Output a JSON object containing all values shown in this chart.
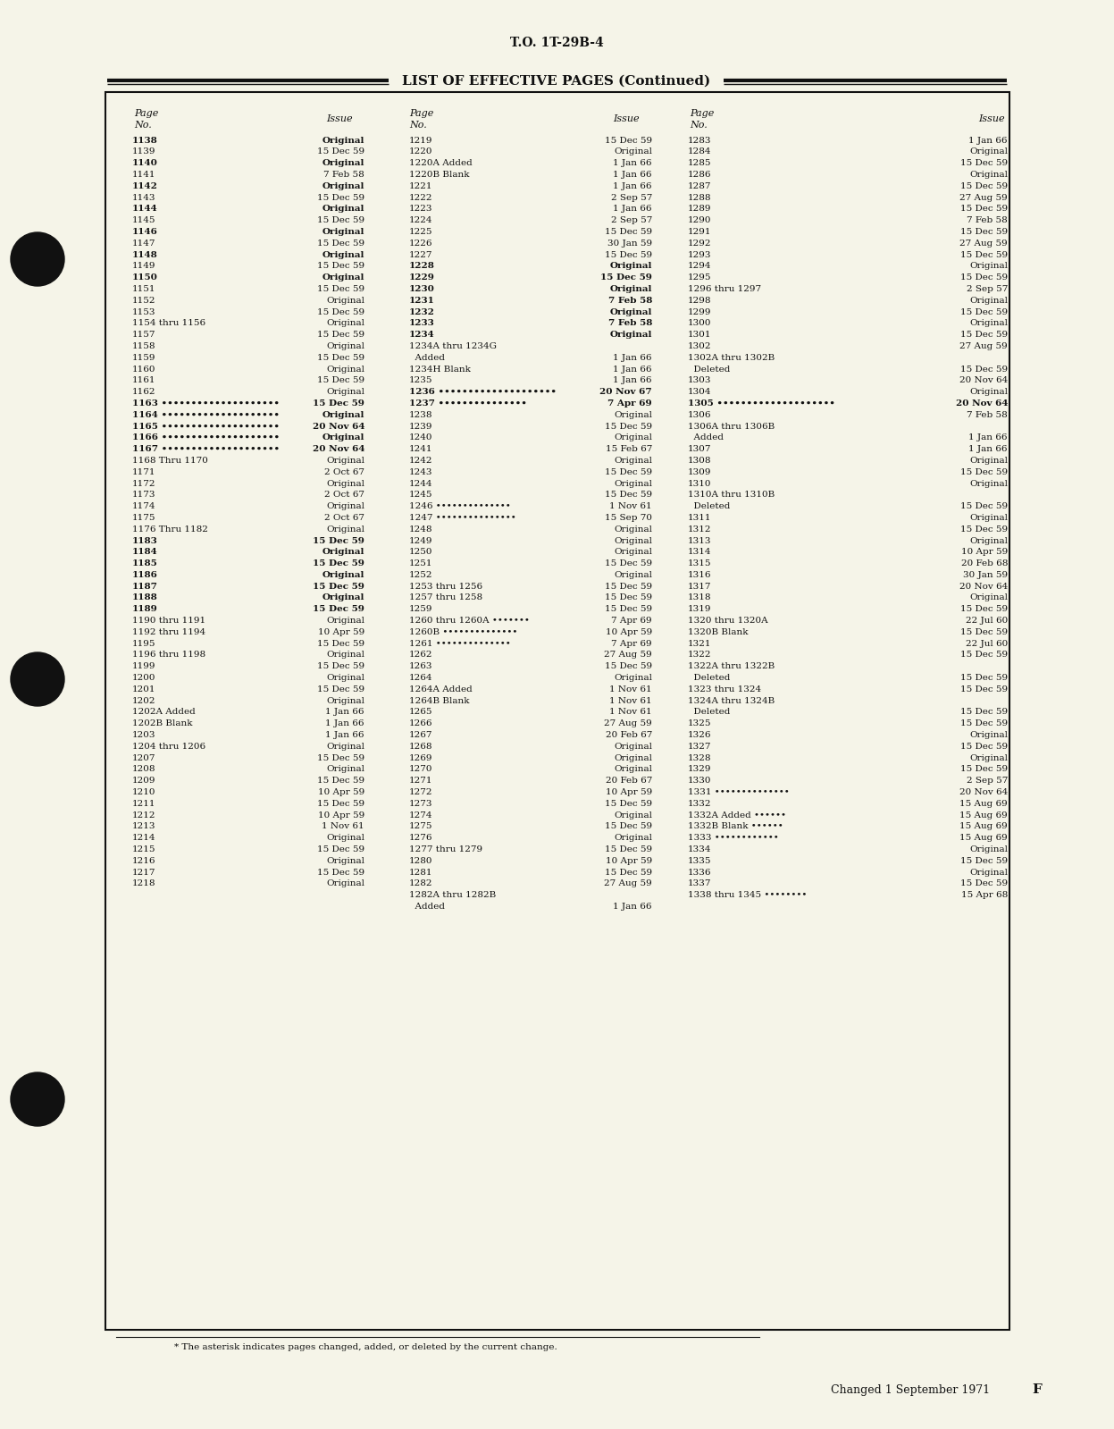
{
  "bg_color": "#f5f4e8",
  "page_color": "#f5f4e8",
  "top_label": "T.O. 1T-29B-4",
  "title": "LIST OF EFFECTIVE PAGES (Continued)",
  "bottom_text": "Changed 1 September 1971",
  "bottom_letter": "F",
  "footnote": "* The asterisk indicates pages changed, added, or deleted by the current change.",
  "col1": [
    [
      "1138",
      "Original",
      true
    ],
    [
      "1139",
      "15 Dec 59",
      false
    ],
    [
      "1140",
      "Original",
      true
    ],
    [
      "1141",
      "7 Feb 58",
      false
    ],
    [
      "1142",
      "Original",
      true
    ],
    [
      "1143",
      "15 Dec 59",
      false
    ],
    [
      "1144",
      "Original",
      true
    ],
    [
      "1145",
      "15 Dec 59",
      false
    ],
    [
      "1146",
      "Original",
      true
    ],
    [
      "1147",
      "15 Dec 59",
      false
    ],
    [
      "1148",
      "Original",
      true
    ],
    [
      "1149",
      "15 Dec 59",
      false
    ],
    [
      "1150",
      "Original",
      true
    ],
    [
      "1151",
      "15 Dec 59",
      false
    ],
    [
      "1152",
      "Original",
      false
    ],
    [
      "1153",
      "15 Dec 59",
      false
    ],
    [
      "1154 thru 1156",
      "Original",
      false
    ],
    [
      "1157",
      "15 Dec 59",
      false
    ],
    [
      "1158",
      "Original",
      false
    ],
    [
      "1159",
      "15 Dec 59",
      false
    ],
    [
      "1160",
      "Original",
      false
    ],
    [
      "1161",
      "15 Dec 59",
      false
    ],
    [
      "1162",
      "Original",
      false
    ],
    [
      "1163 ••••••••••••••••••••",
      "15 Dec 59",
      true
    ],
    [
      "1164 ••••••••••••••••••••",
      "Original",
      true
    ],
    [
      "1165 ••••••••••••••••••••",
      "20 Nov 64",
      true
    ],
    [
      "1166 ••••••••••••••••••••",
      "Original",
      true
    ],
    [
      "1167 ••••••••••••••••••••",
      "20 Nov 64",
      true
    ],
    [
      "1168 Thru 1170",
      "Original",
      false
    ],
    [
      "1171",
      "2 Oct 67",
      false
    ],
    [
      "1172",
      "Original",
      false
    ],
    [
      "1173",
      "2 Oct 67",
      false
    ],
    [
      "1174",
      "Original",
      false
    ],
    [
      "1175",
      "2 Oct 67",
      false
    ],
    [
      "1176 Thru 1182",
      "Original",
      false
    ],
    [
      "1183",
      "15 Dec 59",
      true
    ],
    [
      "1184",
      "Original",
      true
    ],
    [
      "1185",
      "15 Dec 59",
      true
    ],
    [
      "1186",
      "Original",
      true
    ],
    [
      "1187",
      "15 Dec 59",
      true
    ],
    [
      "1188",
      "Original",
      true
    ],
    [
      "1189",
      "15 Dec 59",
      true
    ],
    [
      "1190 thru 1191",
      "Original",
      false
    ],
    [
      "1192 thru 1194",
      "10 Apr 59",
      false
    ],
    [
      "1195",
      "15 Dec 59",
      false
    ],
    [
      "1196 thru 1198",
      "Original",
      false
    ],
    [
      "1199",
      "15 Dec 59",
      false
    ],
    [
      "1200",
      "Original",
      false
    ],
    [
      "1201",
      "15 Dec 59",
      false
    ],
    [
      "1202",
      "Original",
      false
    ],
    [
      "1202A Added",
      "1 Jan 66",
      false
    ],
    [
      "1202B Blank",
      "1 Jan 66",
      false
    ],
    [
      "1203",
      "1 Jan 66",
      false
    ],
    [
      "1204 thru 1206",
      "Original",
      false
    ],
    [
      "1207",
      "15 Dec 59",
      false
    ],
    [
      "1208",
      "Original",
      false
    ],
    [
      "1209",
      "15 Dec 59",
      false
    ],
    [
      "1210",
      "10 Apr 59",
      false
    ],
    [
      "1211",
      "15 Dec 59",
      false
    ],
    [
      "1212",
      "10 Apr 59",
      false
    ],
    [
      "1213",
      "1 Nov 61",
      false
    ],
    [
      "1214",
      "Original",
      false
    ],
    [
      "1215",
      "15 Dec 59",
      false
    ],
    [
      "1216",
      "Original",
      false
    ],
    [
      "1217",
      "15 Dec 59",
      false
    ],
    [
      "1218",
      "Original",
      false
    ]
  ],
  "col2": [
    [
      "1219",
      "15 Dec 59",
      false
    ],
    [
      "1220",
      "Original",
      false
    ],
    [
      "1220A Added",
      "1 Jan 66",
      false
    ],
    [
      "1220B Blank",
      "1 Jan 66",
      false
    ],
    [
      "1221",
      "1 Jan 66",
      false
    ],
    [
      "1222",
      "2 Sep 57",
      false
    ],
    [
      "1223",
      "1 Jan 66",
      false
    ],
    [
      "1224",
      "2 Sep 57",
      false
    ],
    [
      "1225",
      "15 Dec 59",
      false
    ],
    [
      "1226",
      "30 Jan 59",
      false
    ],
    [
      "1227",
      "15 Dec 59",
      false
    ],
    [
      "1228",
      "Original",
      true
    ],
    [
      "1229",
      "15 Dec 59",
      true
    ],
    [
      "1230",
      "Original",
      true
    ],
    [
      "1231",
      "7 Feb 58",
      true
    ],
    [
      "1232",
      "Original",
      true
    ],
    [
      "1233",
      "7 Feb 58",
      true
    ],
    [
      "1234",
      "Original",
      true
    ],
    [
      "1234A thru 1234G\n  Added",
      "1 Jan 66",
      false
    ],
    [
      "1234H Blank",
      "1 Jan 66",
      false
    ],
    [
      "1235",
      "1 Jan 66",
      false
    ],
    [
      "1236 ••••••••••••••••••••",
      "20 Nov 67",
      true
    ],
    [
      "1237 •••••••••••••••",
      "7 Apr 69",
      true
    ],
    [
      "1238",
      "Original",
      false
    ],
    [
      "1239",
      "15 Dec 59",
      false
    ],
    [
      "1240",
      "Original",
      false
    ],
    [
      "1241",
      "15 Feb 67",
      false
    ],
    [
      "1242",
      "Original",
      false
    ],
    [
      "1243",
      "15 Dec 59",
      false
    ],
    [
      "1244",
      "Original",
      false
    ],
    [
      "1245",
      "15 Dec 59",
      false
    ],
    [
      "1246 ••••••••••••••",
      "1 Nov 61",
      false
    ],
    [
      "1247 •••••••••••••••",
      "15 Sep 70",
      false
    ],
    [
      "1248",
      "Original",
      false
    ],
    [
      "1249",
      "Original",
      false
    ],
    [
      "1250",
      "Original",
      false
    ],
    [
      "1251",
      "15 Dec 59",
      false
    ],
    [
      "1252",
      "Original",
      false
    ],
    [
      "1253 thru 1256",
      "15 Dec 59",
      false
    ],
    [
      "1257 thru 1258",
      "15 Dec 59",
      false
    ],
    [
      "1259",
      "15 Dec 59",
      false
    ],
    [
      "1260 thru 1260A •••••••",
      "7 Apr 69",
      false
    ],
    [
      "1260B ••••••••••••••",
      "10 Apr 59",
      false
    ],
    [
      "1261 ••••••••••••••",
      "7 Apr 69",
      false
    ],
    [
      "1262",
      "27 Aug 59",
      false
    ],
    [
      "1263",
      "15 Dec 59",
      false
    ],
    [
      "1264",
      "Original",
      false
    ],
    [
      "1264A Added",
      "1 Nov 61",
      false
    ],
    [
      "1264B Blank",
      "1 Nov 61",
      false
    ],
    [
      "1265",
      "1 Nov 61",
      false
    ],
    [
      "1266",
      "27 Aug 59",
      false
    ],
    [
      "1267",
      "20 Feb 67",
      false
    ],
    [
      "1268",
      "Original",
      false
    ],
    [
      "1269",
      "Original",
      false
    ],
    [
      "1270",
      "Original",
      false
    ],
    [
      "1271",
      "20 Feb 67",
      false
    ],
    [
      "1272",
      "10 Apr 59",
      false
    ],
    [
      "1273",
      "15 Dec 59",
      false
    ],
    [
      "1274",
      "Original",
      false
    ],
    [
      "1275",
      "15 Dec 59",
      false
    ],
    [
      "1276",
      "Original",
      false
    ],
    [
      "1277 thru 1279",
      "15 Dec 59",
      false
    ],
    [
      "1280",
      "10 Apr 59",
      false
    ],
    [
      "1281",
      "15 Dec 59",
      false
    ],
    [
      "1282",
      "27 Aug 59",
      false
    ],
    [
      "1282A thru 1282B\n  Added",
      "1 Jan 66",
      false
    ]
  ],
  "col3": [
    [
      "1283",
      "1 Jan 66",
      false
    ],
    [
      "1284",
      "Original",
      false
    ],
    [
      "1285",
      "15 Dec 59",
      false
    ],
    [
      "1286",
      "Original",
      false
    ],
    [
      "1287",
      "15 Dec 59",
      false
    ],
    [
      "1288",
      "27 Aug 59",
      false
    ],
    [
      "1289",
      "15 Dec 59",
      false
    ],
    [
      "1290",
      "7 Feb 58",
      false
    ],
    [
      "1291",
      "15 Dec 59",
      false
    ],
    [
      "1292",
      "27 Aug 59",
      false
    ],
    [
      "1293",
      "15 Dec 59",
      false
    ],
    [
      "1294",
      "Original",
      false
    ],
    [
      "1295",
      "15 Dec 59",
      false
    ],
    [
      "1296 thru 1297",
      "2 Sep 57",
      false
    ],
    [
      "1298",
      "Original",
      false
    ],
    [
      "1299",
      "15 Dec 59",
      false
    ],
    [
      "1300",
      "Original",
      false
    ],
    [
      "1301",
      "15 Dec 59",
      false
    ],
    [
      "1302",
      "27 Aug 59",
      false
    ],
    [
      "1302A thru 1302B\n  Deleted",
      "15 Dec 59",
      false
    ],
    [
      "1303",
      "20 Nov 64",
      false
    ],
    [
      "1304",
      "Original",
      false
    ],
    [
      "1305 ••••••••••••••••••••",
      "20 Nov 64",
      true
    ],
    [
      "1306",
      "7 Feb 58",
      false
    ],
    [
      "1306A thru 1306B\n  Added",
      "1 Jan 66",
      false
    ],
    [
      "1307",
      "1 Jan 66",
      false
    ],
    [
      "1308",
      "Original",
      false
    ],
    [
      "1309",
      "15 Dec 59",
      false
    ],
    [
      "1310",
      "Original",
      false
    ],
    [
      "1310A thru 1310B\n  Deleted",
      "15 Dec 59",
      false
    ],
    [
      "1311",
      "Original",
      false
    ],
    [
      "1312",
      "15 Dec 59",
      false
    ],
    [
      "1313",
      "Original",
      false
    ],
    [
      "1314",
      "10 Apr 59",
      false
    ],
    [
      "1315",
      "20 Feb 68",
      false
    ],
    [
      "1316",
      "30 Jan 59",
      false
    ],
    [
      "1317",
      "20 Nov 64",
      false
    ],
    [
      "1318",
      "Original",
      false
    ],
    [
      "1319",
      "15 Dec 59",
      false
    ],
    [
      "1320 thru 1320A",
      "22 Jul 60",
      false
    ],
    [
      "1320B Blank",
      "15 Dec 59",
      false
    ],
    [
      "1321",
      "22 Jul 60",
      false
    ],
    [
      "1322",
      "15 Dec 59",
      false
    ],
    [
      "1322A thru 1322B\n  Deleted",
      "15 Dec 59",
      false
    ],
    [
      "1323 thru 1324",
      "15 Dec 59",
      false
    ],
    [
      "1324A thru 1324B\n  Deleted",
      "15 Dec 59",
      false
    ],
    [
      "1325",
      "15 Dec 59",
      false
    ],
    [
      "1326",
      "Original",
      false
    ],
    [
      "1327",
      "15 Dec 59",
      false
    ],
    [
      "1328",
      "Original",
      false
    ],
    [
      "1329",
      "15 Dec 59",
      false
    ],
    [
      "1330",
      "2 Sep 57",
      false
    ],
    [
      "1331 ••••••••••••••",
      "20 Nov 64",
      false
    ],
    [
      "1332",
      "15 Aug 69",
      false
    ],
    [
      "1332A Added ••••••",
      "15 Aug 69",
      false
    ],
    [
      "1332B Blank ••••••",
      "15 Aug 69",
      false
    ],
    [
      "1333 ••••••••••••",
      "15 Aug 69",
      false
    ],
    [
      "1334",
      "Original",
      false
    ],
    [
      "1335",
      "15 Dec 59",
      false
    ],
    [
      "1336",
      "Original",
      false
    ],
    [
      "1337",
      "15 Dec 59",
      false
    ],
    [
      "1338 thru 1345 ••••••••",
      "15 Apr 68",
      false
    ]
  ]
}
